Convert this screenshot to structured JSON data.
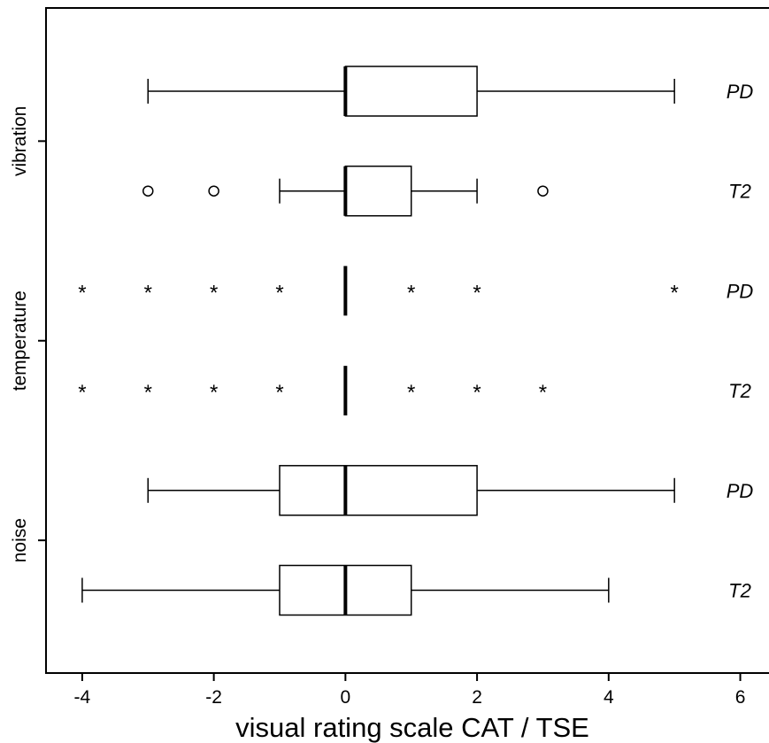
{
  "chart_data": {
    "type": "box",
    "orientation": "horizontal",
    "xlabel": "visual rating scale CAT / TSE",
    "xlim": [
      -4.55,
      6.45
    ],
    "x_ticks": [
      "-4",
      "-2",
      "0",
      "2",
      "4",
      "6"
    ],
    "categories": [
      "vibration",
      "temperature",
      "noise"
    ],
    "grid": false,
    "boxes": [
      {
        "category": "vibration",
        "series": "PD",
        "min": -3,
        "q1": 0,
        "median": 0,
        "q3": 2,
        "max": 5,
        "outliers": [],
        "extremes": []
      },
      {
        "category": "vibration",
        "series": "T2",
        "min": -1,
        "q1": 0,
        "median": 0,
        "q3": 1,
        "max": 2,
        "outliers": [
          -3,
          -2,
          3
        ],
        "extremes": []
      },
      {
        "category": "temperature",
        "series": "PD",
        "min": 0,
        "q1": 0,
        "median": 0,
        "q3": 0,
        "max": 0,
        "outliers": [],
        "extremes": [
          -4,
          -3,
          -2,
          -1,
          1,
          2,
          5
        ]
      },
      {
        "category": "temperature",
        "series": "T2",
        "min": 0,
        "q1": 0,
        "median": 0,
        "q3": 0,
        "max": 0,
        "outliers": [],
        "extremes": [
          -4,
          -3,
          -2,
          -1,
          1,
          2,
          3
        ]
      },
      {
        "category": "noise",
        "series": "PD",
        "min": -3,
        "q1": -1,
        "median": 0,
        "q3": 2,
        "max": 5,
        "outliers": [],
        "extremes": []
      },
      {
        "category": "noise",
        "series": "T2",
        "min": -4,
        "q1": -1,
        "median": 0,
        "q3": 1,
        "max": 4,
        "outliers": [],
        "extremes": []
      }
    ]
  }
}
